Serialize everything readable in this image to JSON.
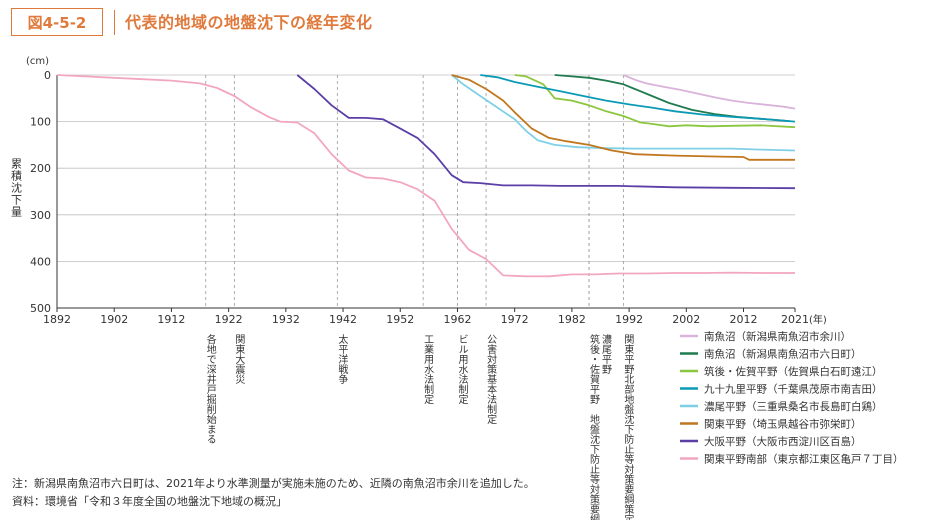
{
  "figure": {
    "label": "図4-5-2",
    "title": "代表的地域の地盤沈下の経年変化"
  },
  "notes": {
    "note": "注：新潟県南魚沼市六日町は、2021年より水準測量が実施未施のため、近隣の南魚沼市余川を追加した。",
    "source": "資料：環境省「令和３年度全国の地盤沈下地域の概況」"
  },
  "chart_data": {
    "type": "line",
    "title": "代表的地域の地盤沈下の経年変化",
    "xlabel": "(年)",
    "ylabel": "累積沈下量",
    "yunit": "(cm)",
    "xlim": [
      1892,
      2021
    ],
    "ylim": [
      0,
      500
    ],
    "y_inverted": true,
    "xticks": [
      1892,
      1902,
      1912,
      1922,
      1932,
      1942,
      1952,
      1962,
      1972,
      1982,
      1992,
      2002,
      2012,
      2021
    ],
    "yticks": [
      0,
      100,
      200,
      300,
      400,
      500
    ],
    "grid_vertical_dashed": true,
    "legend_position": "right-bottom",
    "events": [
      {
        "year": 1918,
        "label": "各地で深井戸掘削始まる"
      },
      {
        "year": 1923,
        "label": "関東大震災"
      },
      {
        "year": 1941,
        "label": "太平洋戦争"
      },
      {
        "year": 1956,
        "label": "工業用水法制定"
      },
      {
        "year": 1962,
        "label": "ビル用水法制定"
      },
      {
        "year": 1967,
        "label": "公害対策基本法制定"
      },
      {
        "year": 1985,
        "label": "筑後・佐賀平野　地盤沈下防止等対策要綱策定"
      },
      {
        "year": 1985,
        "label": "濃尾平野"
      },
      {
        "year": 1991,
        "label": "関東平野北部地盤沈下防止等対策要綱策定"
      }
    ],
    "series": [
      {
        "name": "南魚沼（新潟県南魚沼市余川）",
        "color": "#d9b3d9",
        "points": [
          [
            1991,
            0
          ],
          [
            1993,
            10
          ],
          [
            1995,
            18
          ],
          [
            1998,
            25
          ],
          [
            2001,
            32
          ],
          [
            2004,
            40
          ],
          [
            2007,
            48
          ],
          [
            2010,
            55
          ],
          [
            2013,
            60
          ],
          [
            2016,
            64
          ],
          [
            2019,
            68
          ],
          [
            2021,
            72
          ]
        ]
      },
      {
        "name": "南魚沼（新潟県南魚沼市六日町）",
        "color": "#1f7a4f",
        "points": [
          [
            1979,
            0
          ],
          [
            1982,
            3
          ],
          [
            1985,
            6
          ],
          [
            1988,
            12
          ],
          [
            1991,
            20
          ],
          [
            1993,
            30
          ],
          [
            1996,
            45
          ],
          [
            1999,
            60
          ],
          [
            2003,
            75
          ],
          [
            2007,
            84
          ],
          [
            2011,
            90
          ],
          [
            2015,
            94
          ],
          [
            2018,
            97
          ],
          [
            2020,
            99
          ]
        ]
      },
      {
        "name": "筑後・佐賀平野（佐賀県白石町遠江）",
        "color": "#8cc63f",
        "points": [
          [
            1972,
            0
          ],
          [
            1974,
            3
          ],
          [
            1977,
            20
          ],
          [
            1979,
            50
          ],
          [
            1982,
            55
          ],
          [
            1985,
            65
          ],
          [
            1988,
            78
          ],
          [
            1991,
            88
          ],
          [
            1994,
            102
          ],
          [
            1996,
            105
          ],
          [
            1999,
            110
          ],
          [
            2002,
            108
          ],
          [
            2006,
            110
          ],
          [
            2010,
            109
          ],
          [
            2015,
            108
          ],
          [
            2021,
            112
          ]
        ]
      },
      {
        "name": "九十九里平野（千葉県茂原市南吉田）",
        "color": "#0b9ab5",
        "points": [
          [
            1966,
            0
          ],
          [
            1969,
            5
          ],
          [
            1972,
            15
          ],
          [
            1976,
            25
          ],
          [
            1980,
            35
          ],
          [
            1984,
            45
          ],
          [
            1988,
            55
          ],
          [
            1992,
            63
          ],
          [
            1996,
            70
          ],
          [
            2000,
            78
          ],
          [
            2005,
            85
          ],
          [
            2010,
            90
          ],
          [
            2015,
            94
          ],
          [
            2021,
            100
          ]
        ]
      },
      {
        "name": "濃尾平野（三重県桑名市長島町白鶏）",
        "color": "#7fd0e6",
        "points": [
          [
            1961,
            0
          ],
          [
            1963,
            20
          ],
          [
            1966,
            45
          ],
          [
            1969,
            70
          ],
          [
            1972,
            95
          ],
          [
            1974,
            120
          ],
          [
            1976,
            140
          ],
          [
            1979,
            150
          ],
          [
            1983,
            155
          ],
          [
            1988,
            157
          ],
          [
            1993,
            158
          ],
          [
            2000,
            158
          ],
          [
            2010,
            158
          ],
          [
            2015,
            160
          ],
          [
            2021,
            162
          ]
        ]
      },
      {
        "name": "関東平野（埼玉県越谷市弥栄町）",
        "color": "#c0771e",
        "points": [
          [
            1961,
            0
          ],
          [
            1964,
            10
          ],
          [
            1967,
            30
          ],
          [
            1970,
            55
          ],
          [
            1972,
            80
          ],
          [
            1975,
            115
          ],
          [
            1978,
            135
          ],
          [
            1981,
            142
          ],
          [
            1985,
            150
          ],
          [
            1989,
            162
          ],
          [
            1993,
            170
          ],
          [
            2000,
            173
          ],
          [
            2008,
            175
          ],
          [
            2012,
            176
          ],
          [
            2013,
            182
          ],
          [
            2021,
            182
          ]
        ]
      },
      {
        "name": "大阪平野（大阪市西淀川区百島）",
        "color": "#5b3fa6",
        "points": [
          [
            1934,
            0
          ],
          [
            1937,
            30
          ],
          [
            1940,
            65
          ],
          [
            1943,
            92
          ],
          [
            1946,
            92
          ],
          [
            1949,
            95
          ],
          [
            1952,
            115
          ],
          [
            1955,
            135
          ],
          [
            1958,
            170
          ],
          [
            1961,
            215
          ],
          [
            1963,
            230
          ],
          [
            1966,
            232
          ],
          [
            1970,
            237
          ],
          [
            1975,
            237
          ],
          [
            1980,
            238
          ],
          [
            1990,
            238
          ],
          [
            2000,
            241
          ],
          [
            2010,
            242
          ],
          [
            2021,
            243
          ]
        ]
      },
      {
        "name": "関東平野南部（東京都江東区亀戸７丁目）",
        "color": "#f2a6bf",
        "points": [
          [
            1892,
            0
          ],
          [
            1897,
            3
          ],
          [
            1902,
            6
          ],
          [
            1907,
            9
          ],
          [
            1912,
            12
          ],
          [
            1917,
            18
          ],
          [
            1920,
            28
          ],
          [
            1923,
            45
          ],
          [
            1926,
            70
          ],
          [
            1929,
            90
          ],
          [
            1931,
            100
          ],
          [
            1934,
            102
          ],
          [
            1937,
            125
          ],
          [
            1940,
            170
          ],
          [
            1943,
            205
          ],
          [
            1946,
            220
          ],
          [
            1949,
            222
          ],
          [
            1952,
            230
          ],
          [
            1955,
            245
          ],
          [
            1958,
            270
          ],
          [
            1961,
            330
          ],
          [
            1964,
            375
          ],
          [
            1967,
            395
          ],
          [
            1970,
            430
          ],
          [
            1974,
            432
          ],
          [
            1978,
            432
          ],
          [
            1982,
            428
          ],
          [
            1986,
            428
          ],
          [
            1990,
            426
          ],
          [
            1995,
            426
          ],
          [
            2000,
            425
          ],
          [
            2005,
            425
          ],
          [
            2010,
            424
          ],
          [
            2015,
            425
          ],
          [
            2021,
            425
          ]
        ]
      }
    ]
  }
}
